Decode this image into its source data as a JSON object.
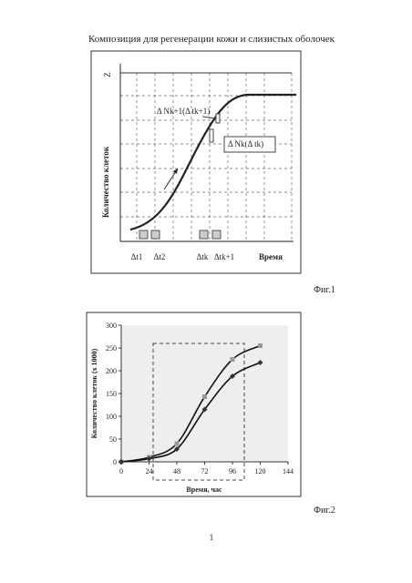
{
  "header": {
    "title": "Композиция для регенерации кожи и слизистых оболочек"
  },
  "figure1": {
    "z_label": "Z",
    "y_axis_label": "Количество клеток",
    "annotation_upper": "Δ Nk+1(Δ tk+1)",
    "annotation_lower": "Δ Nk(Δ tk)",
    "x_labels": [
      "Δt1",
      "Δt2",
      "Δtk",
      "Δtk+1"
    ],
    "x_axis_label": "Время",
    "caption": "Фиг.1"
  },
  "figure2": {
    "chart_data": {
      "type": "line",
      "x": [
        0,
        24,
        48,
        72,
        96,
        120
      ],
      "series": [
        {
          "color": "#999999",
          "marker": "square",
          "values": [
            0,
            10,
            40,
            143,
            225,
            255
          ]
        },
        {
          "color": "#333333",
          "marker": "diamond",
          "values": [
            0,
            7,
            28,
            115,
            188,
            218
          ]
        }
      ],
      "xlim": [
        0,
        144
      ],
      "xticks": [
        0,
        24,
        48,
        72,
        96,
        120,
        144
      ],
      "ylim": [
        0,
        300
      ],
      "yticks": [
        0,
        50,
        100,
        150,
        200,
        250,
        300
      ],
      "grid": false,
      "x_axis_label": "Время, час",
      "y_axis_label": "Количество клеток (x 1000)"
    },
    "caption": "Фиг.2"
  },
  "footer": {
    "page_number": "1"
  }
}
